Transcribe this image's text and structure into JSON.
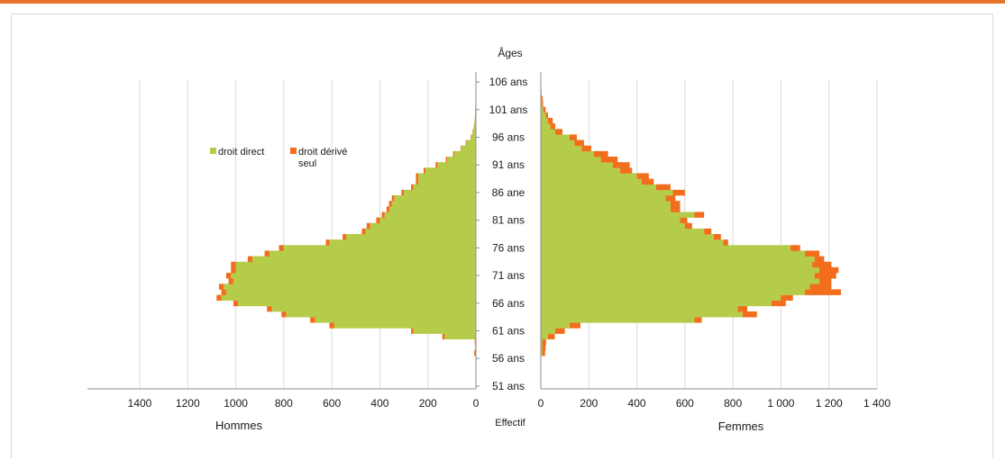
{
  "chart_data": {
    "type": "bar",
    "orientation": "horizontal",
    "subtype": "population-pyramid",
    "title": "Âges",
    "xlabel": "Effectif",
    "left_label": "Hommes",
    "right_label": "Femmes",
    "left_ticks": [
      "1400",
      "1200",
      "1000",
      "800",
      "600",
      "400",
      "200",
      "0"
    ],
    "right_ticks": [
      "0",
      "200",
      "400",
      "600",
      "800",
      "1 000",
      "1 200",
      "1 400"
    ],
    "xlim": [
      0,
      1400
    ],
    "age_range": [
      51,
      106
    ],
    "age_tick_labels": [
      {
        "age": 106,
        "label": "106 ans"
      },
      {
        "age": 101,
        "label": "101 ans"
      },
      {
        "age": 96,
        "label": "96 ans"
      },
      {
        "age": 91,
        "label": "91 ans"
      },
      {
        "age": 86,
        "label": "86 ane"
      },
      {
        "age": 81,
        "label": "81 ans"
      },
      {
        "age": 76,
        "label": "76 ans"
      },
      {
        "age": 71,
        "label": "71 ans"
      },
      {
        "age": 66,
        "label": "66 ans"
      },
      {
        "age": 61,
        "label": "61 ans"
      },
      {
        "age": 56,
        "label": "56 ans"
      },
      {
        "age": 51,
        "label": "51 ans"
      }
    ],
    "legend": {
      "position": "top-left",
      "items": [
        {
          "label": "droit direct",
          "color": "#b5cc4a"
        },
        {
          "label": "droit dérivé seul",
          "color": "#f26d1c"
        }
      ]
    },
    "colors": {
      "droit_direct": "#b5cc4a",
      "droit_derive": "#f26d1c",
      "accent_bar": "#e8742c",
      "grid": "#d9d9d9"
    },
    "grid": true,
    "ages": [
      57,
      58,
      59,
      60,
      61,
      62,
      63,
      64,
      65,
      66,
      67,
      68,
      69,
      70,
      71,
      72,
      73,
      74,
      75,
      76,
      77,
      78,
      79,
      80,
      81,
      82,
      83,
      84,
      85,
      86,
      87,
      88,
      89,
      90,
      91,
      92,
      93,
      94,
      95,
      96,
      97,
      98,
      99,
      100,
      101,
      102,
      103,
      104
    ],
    "series": [
      {
        "name": "droit direct",
        "hommes": [
          1,
          2,
          3,
          130,
          260,
          590,
          670,
          790,
          850,
          990,
          1060,
          1040,
          1050,
          1010,
          1020,
          1000,
          1000,
          930,
          860,
          800,
          610,
          540,
          460,
          440,
          400,
          380,
          360,
          350,
          340,
          300,
          260,
          240,
          240,
          210,
          160,
          120,
          90,
          60,
          40,
          20,
          12,
          8,
          5,
          3,
          2,
          1,
          0,
          0
        ],
        "femmes": [
          6,
          6,
          6,
          30,
          60,
          120,
          640,
          840,
          820,
          960,
          1000,
          1100,
          1120,
          1160,
          1140,
          1160,
          1130,
          1140,
          1100,
          1040,
          760,
          720,
          680,
          600,
          580,
          640,
          540,
          540,
          520,
          550,
          480,
          420,
          400,
          330,
          300,
          250,
          220,
          170,
          140,
          120,
          60,
          40,
          30,
          20,
          10,
          5,
          3,
          1
        ],
        "color": "#b5cc4a"
      },
      {
        "name": "droit dérivé seul",
        "hommes": [
          6,
          1,
          2,
          10,
          10,
          20,
          20,
          20,
          20,
          20,
          20,
          20,
          20,
          20,
          20,
          20,
          20,
          20,
          20,
          20,
          15,
          15,
          15,
          15,
          15,
          12,
          12,
          12,
          10,
          10,
          10,
          10,
          10,
          8,
          8,
          5,
          5,
          3,
          3,
          2,
          2,
          1,
          1,
          1,
          1,
          1,
          0,
          0
        ],
        "femmes": [
          12,
          14,
          16,
          28,
          40,
          45,
          30,
          60,
          40,
          60,
          50,
          150,
          90,
          50,
          90,
          80,
          80,
          40,
          60,
          40,
          20,
          30,
          30,
          30,
          30,
          40,
          40,
          40,
          40,
          50,
          60,
          50,
          50,
          50,
          70,
          70,
          60,
          40,
          40,
          30,
          30,
          20,
          20,
          10,
          10,
          5,
          5,
          2
        ],
        "color": "#f26d1c"
      }
    ]
  }
}
